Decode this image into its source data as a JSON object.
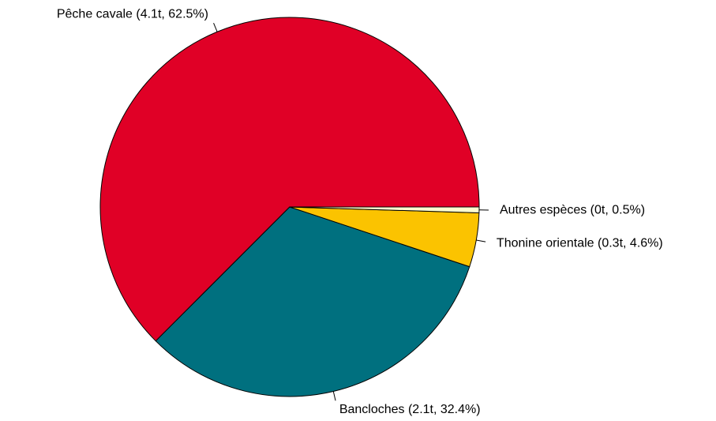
{
  "chart_data": {
    "type": "pie",
    "values": [
      62.5,
      32.4,
      4.6,
      0.5
    ],
    "value_labels": [
      "Pêche cavale (4.1t, 62.5%)",
      "Bancloches (2.1t, 32.4%)",
      "Thonine orientale (0.3t, 4.6%)",
      "Autres espèces (0t, 0.5%)"
    ],
    "colors": [
      "#e00026",
      "#00707f",
      "#fbc300",
      "#ffffd0"
    ],
    "start_angle": 0,
    "direction": "counterclockwise"
  }
}
